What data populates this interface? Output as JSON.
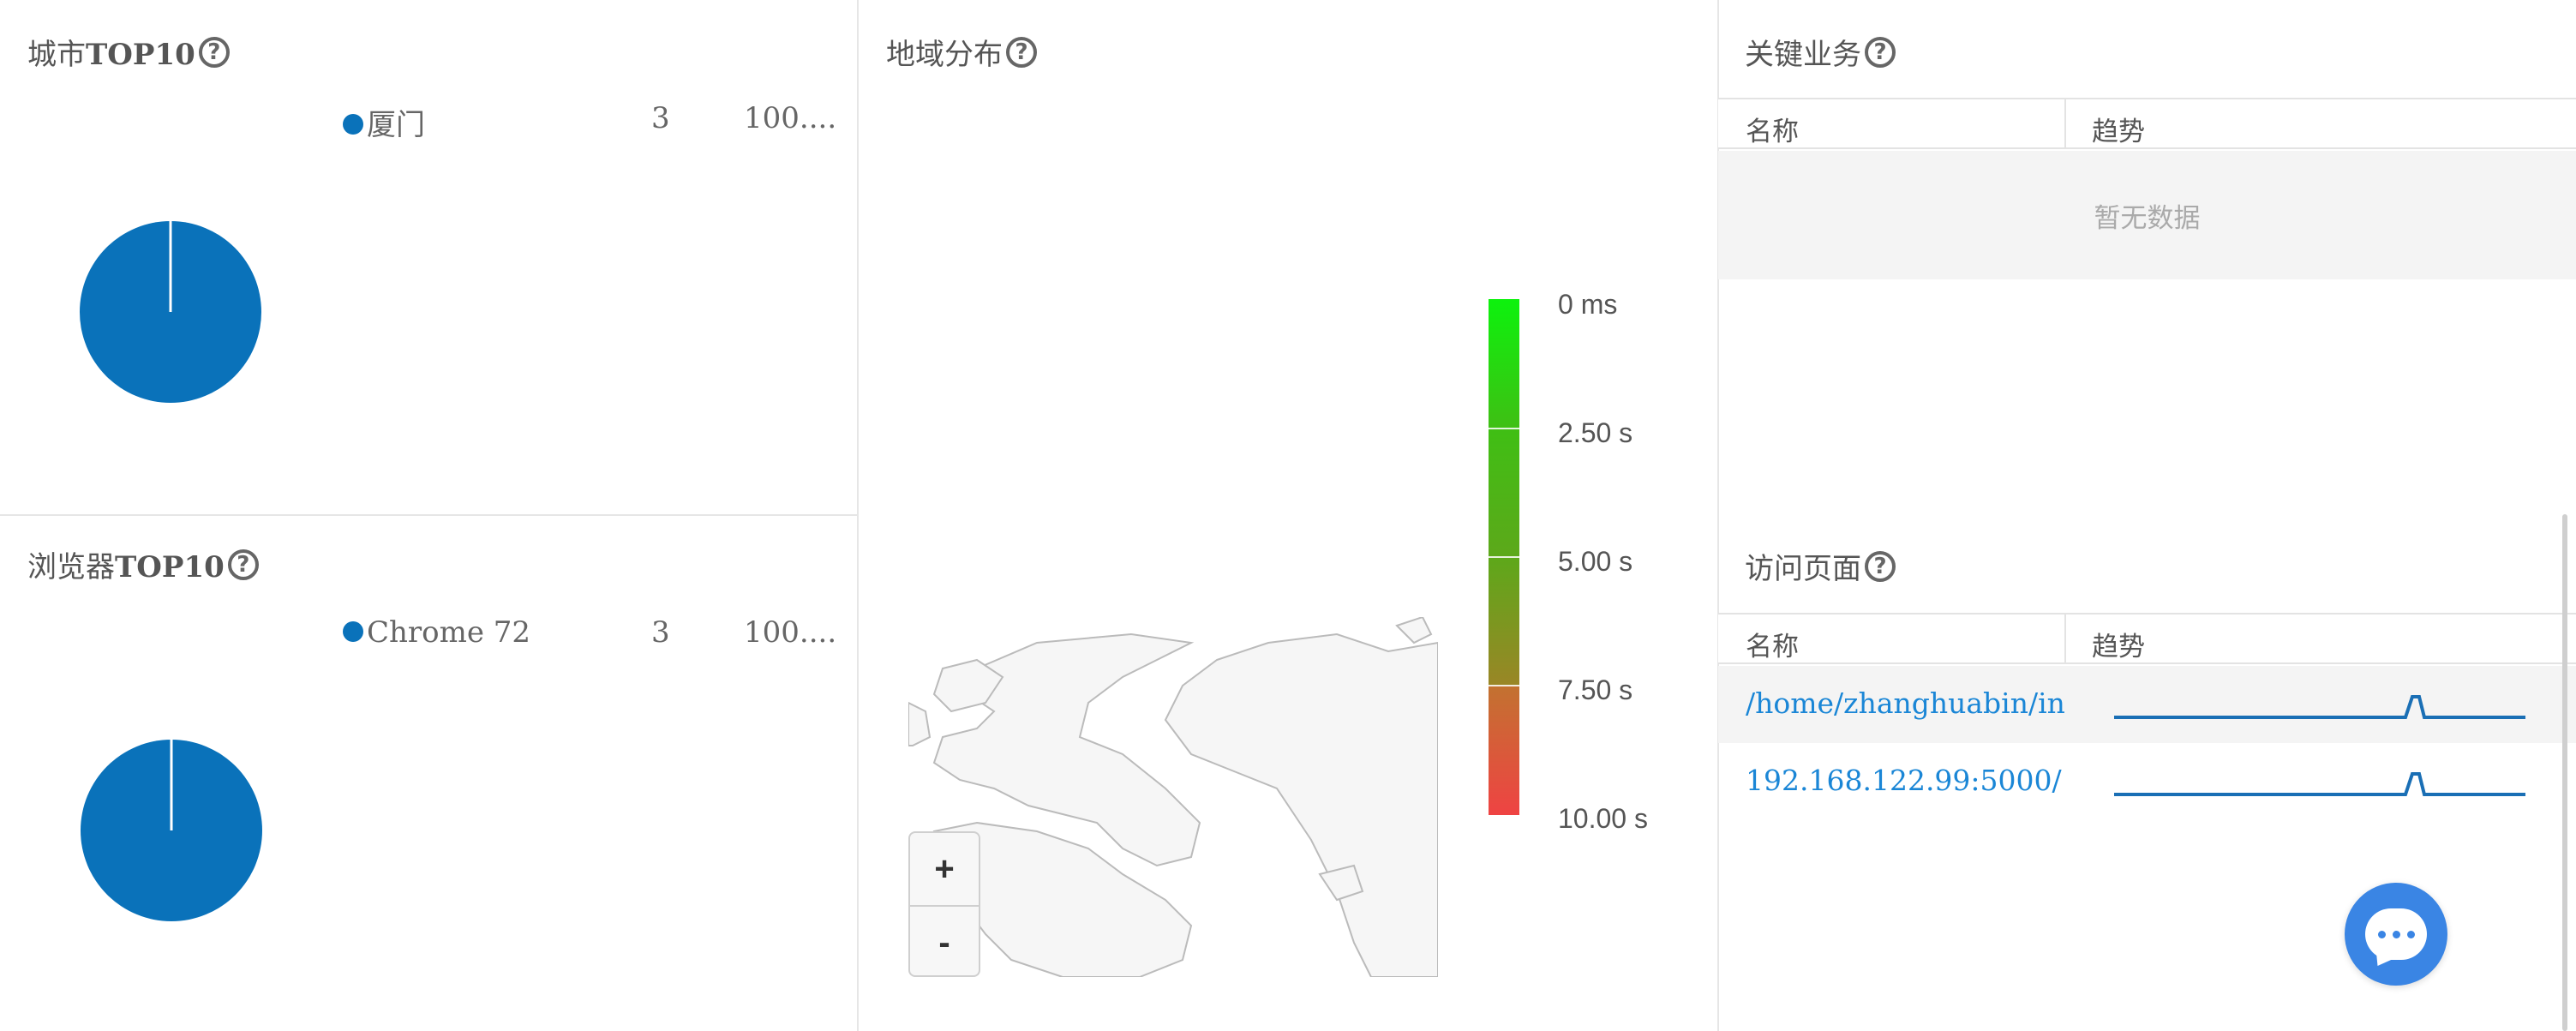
{
  "colors": {
    "pie": "#0a72ba",
    "link": "#1a86d6",
    "accent": "#3a85e4",
    "gradient": [
      "#0df20d",
      "#3fbf14",
      "#6c9f1e",
      "#b57a2a",
      "#ef4343"
    ]
  },
  "city_panel": {
    "title_cn": "城市",
    "title_en": "TOP10",
    "legend": [
      {
        "name": "厦门",
        "count": "3",
        "percent": "100...."
      }
    ]
  },
  "browser_panel": {
    "title_cn": "浏览器",
    "title_en": "TOP10",
    "legend": [
      {
        "name": "Chrome 72",
        "count": "3",
        "percent": "100...."
      }
    ]
  },
  "region_panel": {
    "title": "地域分布",
    "colorbar_labels": [
      "0 ms",
      "2.50 s",
      "5.00 s",
      "7.50 s",
      "10.00 s"
    ],
    "zoom_in": "+",
    "zoom_out": "-"
  },
  "key_business_panel": {
    "title": "关键业务",
    "col_name": "名称",
    "col_trend": "趋势",
    "empty_text": "暂无数据"
  },
  "pages_panel": {
    "title": "访问页面",
    "col_name": "名称",
    "col_trend": "趋势",
    "rows": [
      {
        "name": "/home/zhanghuabin/index.html"
      },
      {
        "name": "192.168.122.99:5000/"
      }
    ]
  },
  "chat": {
    "icon": "chat-icon"
  }
}
